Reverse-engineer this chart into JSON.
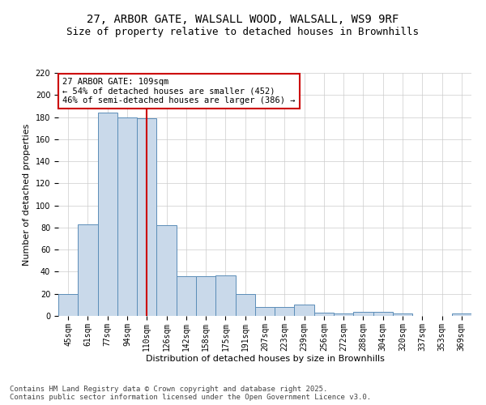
{
  "title_line1": "27, ARBOR GATE, WALSALL WOOD, WALSALL, WS9 9RF",
  "title_line2": "Size of property relative to detached houses in Brownhills",
  "xlabel": "Distribution of detached houses by size in Brownhills",
  "ylabel": "Number of detached properties",
  "categories": [
    "45sqm",
    "61sqm",
    "77sqm",
    "94sqm",
    "110sqm",
    "126sqm",
    "142sqm",
    "158sqm",
    "175sqm",
    "191sqm",
    "207sqm",
    "223sqm",
    "239sqm",
    "256sqm",
    "272sqm",
    "288sqm",
    "304sqm",
    "320sqm",
    "337sqm",
    "353sqm",
    "369sqm"
  ],
  "values": [
    20,
    83,
    184,
    180,
    179,
    82,
    36,
    36,
    37,
    20,
    8,
    8,
    10,
    3,
    2,
    4,
    4,
    2,
    0,
    0,
    2
  ],
  "bar_color": "#c9d9ea",
  "bar_edge_color": "#5b8db8",
  "highlight_index": 4,
  "highlight_line_color": "#cc0000",
  "ylim": [
    0,
    220
  ],
  "yticks": [
    0,
    20,
    40,
    60,
    80,
    100,
    120,
    140,
    160,
    180,
    200,
    220
  ],
  "annotation_text": "27 ARBOR GATE: 109sqm\n← 54% of detached houses are smaller (452)\n46% of semi-detached houses are larger (386) →",
  "annotation_box_color": "#ffffff",
  "annotation_box_edge_color": "#cc0000",
  "footer_line1": "Contains HM Land Registry data © Crown copyright and database right 2025.",
  "footer_line2": "Contains public sector information licensed under the Open Government Licence v3.0.",
  "bg_color": "#ffffff",
  "grid_color": "#cccccc",
  "title_fontsize": 10,
  "subtitle_fontsize": 9,
  "axis_label_fontsize": 8,
  "tick_fontsize": 7,
  "annotation_fontsize": 7.5,
  "footer_fontsize": 6.5
}
